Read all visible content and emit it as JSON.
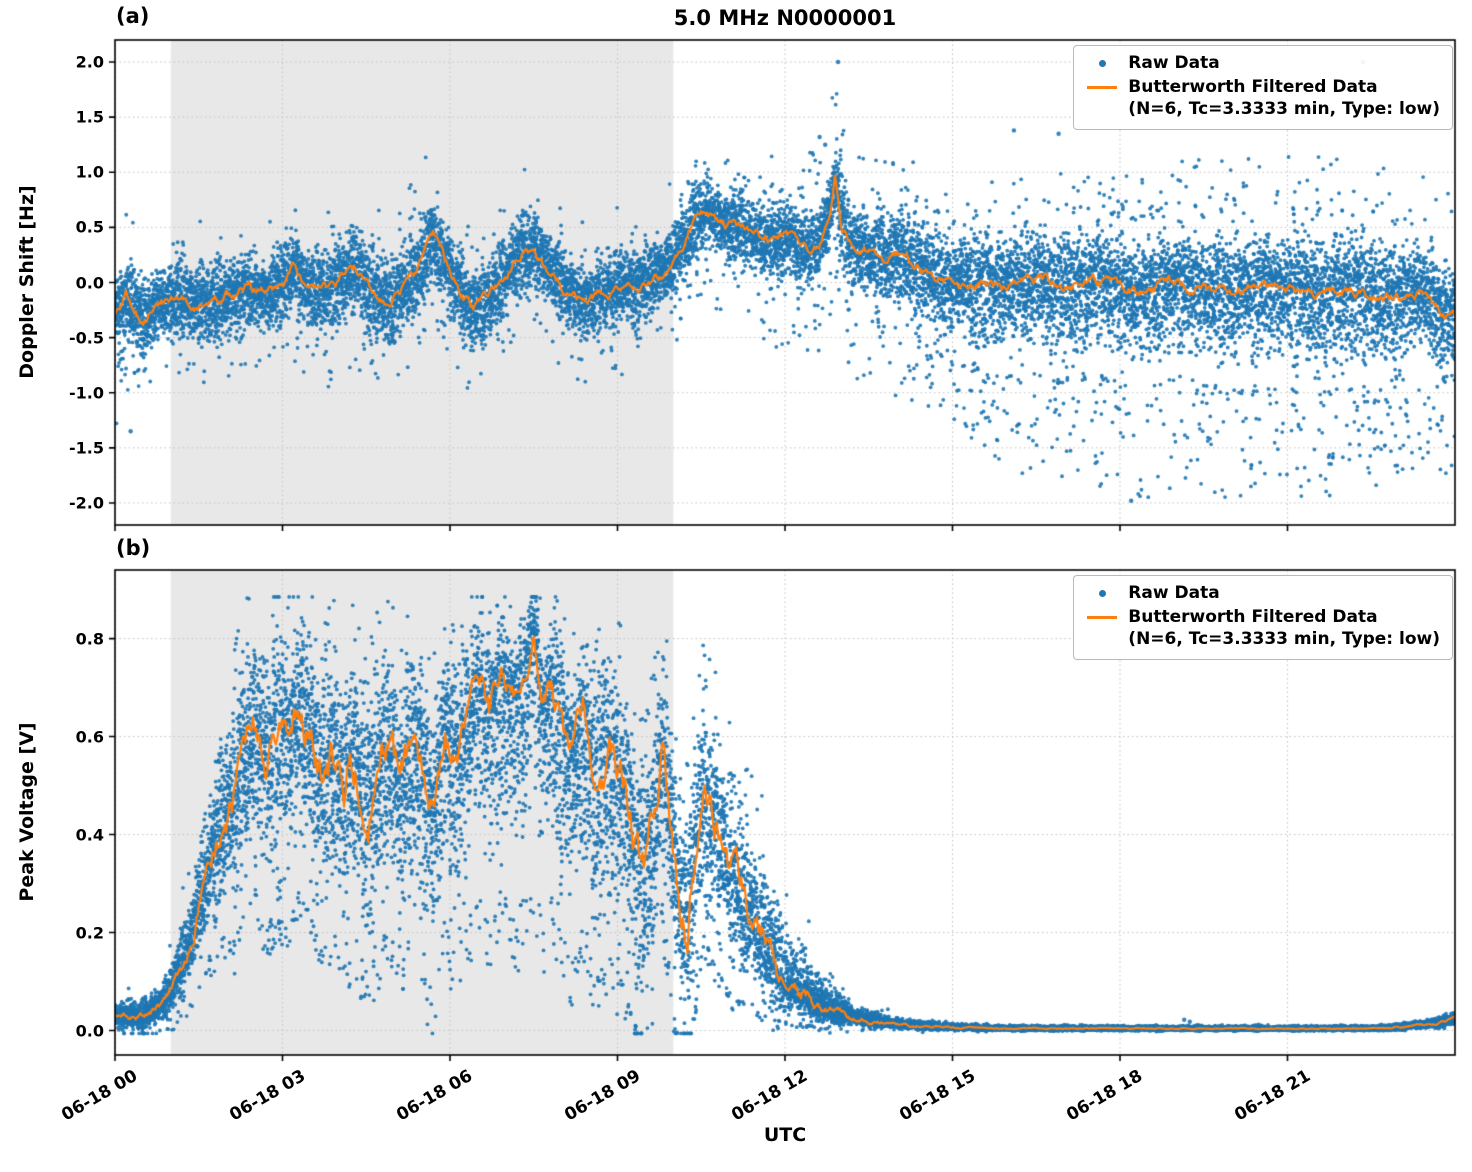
{
  "figure": {
    "title": "5.0 MHz N0000001",
    "xlabel": "UTC",
    "panel_a_label": "(a)",
    "panel_b_label": "(b)",
    "colors": {
      "raw": "#1f77b4",
      "filtered": "#ff7f0e",
      "shade": "#e8e8e8",
      "grid": "#c3c3c3",
      "spine": "#000000"
    },
    "legend": {
      "raw_label": "Raw Data",
      "filtered_label": "Butterworth Filtered Data",
      "filtered_sublabel": "(N=6, Tc=3.3333 min, Type: low)"
    }
  },
  "chart_data": [
    {
      "id": "a",
      "type": "scatter",
      "title": "5.0 MHz N0000001",
      "ylabel": "Doppler Shift [Hz]",
      "xlabel": "",
      "ylim": [
        -2.2,
        2.2
      ],
      "yticks": [
        -2.0,
        -1.5,
        -1.0,
        -0.5,
        0.0,
        0.5,
        1.0,
        1.5,
        2.0
      ],
      "ytick_labels": [
        "-2.0",
        "-1.5",
        "-1.0",
        "-0.5",
        "0.0",
        "0.5",
        "1.0",
        "1.5",
        "2.0"
      ],
      "xlim": [
        0,
        24
      ],
      "xticks": [
        0,
        3,
        6,
        9,
        12,
        15,
        18,
        21
      ],
      "xtick_labels": [
        "06-18 00",
        "06-18 03",
        "06-18 06",
        "06-18 09",
        "06-18 12",
        "06-18 15",
        "06-18 18",
        "06-18 21"
      ],
      "grid": true,
      "legend": [
        "Raw Data",
        "Butterworth Filtered Data (N=6, Tc=3.3333 min, Type: low)"
      ],
      "legend_position": "upper right",
      "shaded_region": [
        1.0,
        10.0
      ],
      "seed": 11,
      "n_points": 15000,
      "line_noise": 0.055,
      "outlier_down_bias": 0.72,
      "filtered": [
        [
          0,
          -0.3
        ],
        [
          0.2,
          -0.12
        ],
        [
          0.5,
          -0.35
        ],
        [
          0.8,
          -0.18
        ],
        [
          1.2,
          -0.14
        ],
        [
          1.6,
          -0.22
        ],
        [
          2.0,
          -0.12
        ],
        [
          2.4,
          -0.05
        ],
        [
          2.7,
          -0.12
        ],
        [
          3.0,
          -0.02
        ],
        [
          3.2,
          0.15
        ],
        [
          3.4,
          0.0
        ],
        [
          3.7,
          -0.1
        ],
        [
          4.0,
          0.02
        ],
        [
          4.3,
          0.12
        ],
        [
          4.6,
          -0.08
        ],
        [
          4.9,
          -0.22
        ],
        [
          5.1,
          -0.05
        ],
        [
          5.4,
          0.08
        ],
        [
          5.7,
          0.42
        ],
        [
          5.85,
          0.25
        ],
        [
          6.1,
          0.0
        ],
        [
          6.4,
          -0.25
        ],
        [
          6.7,
          -0.15
        ],
        [
          7.0,
          0.08
        ],
        [
          7.3,
          0.28
        ],
        [
          7.5,
          0.3
        ],
        [
          7.8,
          0.12
        ],
        [
          8.1,
          -0.08
        ],
        [
          8.4,
          -0.18
        ],
        [
          8.7,
          -0.1
        ],
        [
          9.0,
          -0.05
        ],
        [
          9.4,
          0.0
        ],
        [
          9.8,
          0.08
        ],
        [
          10.1,
          0.3
        ],
        [
          10.4,
          0.55
        ],
        [
          10.6,
          0.65
        ],
        [
          10.9,
          0.52
        ],
        [
          11.2,
          0.48
        ],
        [
          11.5,
          0.42
        ],
        [
          11.8,
          0.35
        ],
        [
          12.1,
          0.42
        ],
        [
          12.4,
          0.28
        ],
        [
          12.6,
          0.35
        ],
        [
          12.8,
          0.6
        ],
        [
          12.9,
          1.0
        ],
        [
          13.0,
          0.55
        ],
        [
          13.2,
          0.32
        ],
        [
          13.5,
          0.28
        ],
        [
          13.8,
          0.22
        ],
        [
          14.1,
          0.28
        ],
        [
          14.4,
          0.15
        ],
        [
          14.7,
          0.05
        ],
        [
          15.0,
          -0.02
        ],
        [
          15.5,
          0.02
        ],
        [
          16.0,
          -0.05
        ],
        [
          16.5,
          0.02
        ],
        [
          17.0,
          -0.04
        ],
        [
          17.5,
          0.03
        ],
        [
          18.0,
          -0.06
        ],
        [
          18.5,
          -0.1
        ],
        [
          19.0,
          0.0
        ],
        [
          19.5,
          -0.06
        ],
        [
          20.0,
          -0.1
        ],
        [
          20.5,
          -0.02
        ],
        [
          21.0,
          -0.06
        ],
        [
          21.5,
          -0.12
        ],
        [
          22.0,
          -0.05
        ],
        [
          22.5,
          -0.12
        ],
        [
          23.0,
          -0.15
        ],
        [
          23.4,
          -0.1
        ],
        [
          23.7,
          -0.22
        ],
        [
          24,
          -0.32
        ]
      ],
      "band": [
        [
          0,
          0.5,
          0.6,
          0.02,
          0.9,
          1.1
        ],
        [
          1,
          0.5,
          0.55,
          0.02,
          0.8,
          0.9
        ],
        [
          3,
          0.5,
          0.55,
          0.02,
          0.8,
          0.9
        ],
        [
          5.5,
          0.55,
          0.6,
          0.03,
          0.9,
          0.9
        ],
        [
          6.5,
          0.5,
          0.55,
          0.02,
          0.8,
          0.8
        ],
        [
          9.5,
          0.45,
          0.5,
          0.02,
          0.8,
          0.8
        ],
        [
          10.2,
          0.45,
          0.45,
          0.03,
          0.7,
          0.8
        ],
        [
          11,
          0.45,
          0.45,
          0.04,
          0.7,
          0.9
        ],
        [
          12.5,
          0.5,
          0.5,
          0.05,
          0.9,
          1.0
        ],
        [
          13.2,
          0.55,
          0.6,
          0.06,
          1.0,
          1.2
        ],
        [
          14,
          0.55,
          0.6,
          0.06,
          0.9,
          1.3
        ],
        [
          15,
          0.6,
          0.7,
          0.07,
          0.9,
          1.5
        ],
        [
          16,
          0.65,
          0.8,
          0.08,
          1.0,
          1.7
        ],
        [
          18,
          0.65,
          0.85,
          0.09,
          1.1,
          1.9
        ],
        [
          20,
          0.65,
          0.85,
          0.09,
          1.2,
          1.9
        ],
        [
          22,
          0.7,
          0.9,
          0.09,
          1.3,
          1.9
        ],
        [
          23,
          0.65,
          0.85,
          0.08,
          1.2,
          1.7
        ],
        [
          24,
          0.6,
          0.8,
          0.07,
          1.1,
          1.5
        ]
      ],
      "extra_points": [
        [
          12.95,
          2.0
        ],
        [
          22.35,
          2.0
        ],
        [
          18.2,
          -1.98
        ],
        [
          16.1,
          1.38
        ],
        [
          16.9,
          1.35
        ],
        [
          0.28,
          -1.35
        ],
        [
          12.62,
          1.32
        ],
        [
          12.72,
          1.25
        ]
      ]
    },
    {
      "id": "b",
      "type": "scatter",
      "title": "",
      "ylabel": "Peak Voltage [V]",
      "xlabel": "UTC",
      "ylim": [
        -0.05,
        0.94
      ],
      "yticks": [
        0.0,
        0.2,
        0.4,
        0.6,
        0.8
      ],
      "ytick_labels": [
        "0.0",
        "0.2",
        "0.4",
        "0.6",
        "0.8"
      ],
      "xlim": [
        0,
        24
      ],
      "xticks": [
        0,
        3,
        6,
        9,
        12,
        15,
        18,
        21
      ],
      "xtick_labels": [
        "06-18 00",
        "06-18 03",
        "06-18 06",
        "06-18 09",
        "06-18 12",
        "06-18 15",
        "06-18 18",
        "06-18 21"
      ],
      "grid": true,
      "legend": [
        "Raw Data",
        "Butterworth Filtered Data (N=6, Tc=3.3333 min, Type: low)"
      ],
      "legend_position": "upper right",
      "shaded_region": [
        1.0,
        10.0
      ],
      "seed": 23,
      "n_points": 16000,
      "line_noise": 0.05,
      "outlier_down_bias": 0.85,
      "clip": [
        -0.006,
        0.885
      ],
      "clip_line": [
        0.0,
        0.83
      ],
      "filtered": [
        [
          0,
          0.03
        ],
        [
          0.5,
          0.03
        ],
        [
          0.8,
          0.05
        ],
        [
          1.0,
          0.08
        ],
        [
          1.3,
          0.16
        ],
        [
          1.6,
          0.3
        ],
        [
          1.9,
          0.42
        ],
        [
          2.2,
          0.5
        ],
        [
          2.5,
          0.63
        ],
        [
          2.7,
          0.55
        ],
        [
          2.9,
          0.63
        ],
        [
          3.1,
          0.58
        ],
        [
          3.3,
          0.66
        ],
        [
          3.5,
          0.6
        ],
        [
          3.7,
          0.52
        ],
        [
          3.9,
          0.56
        ],
        [
          4.1,
          0.48
        ],
        [
          4.3,
          0.55
        ],
        [
          4.5,
          0.44
        ],
        [
          4.7,
          0.52
        ],
        [
          4.9,
          0.56
        ],
        [
          5.1,
          0.48
        ],
        [
          5.3,
          0.58
        ],
        [
          5.5,
          0.52
        ],
        [
          5.7,
          0.46
        ],
        [
          5.9,
          0.62
        ],
        [
          6.1,
          0.55
        ],
        [
          6.3,
          0.62
        ],
        [
          6.5,
          0.7
        ],
        [
          6.7,
          0.63
        ],
        [
          6.9,
          0.72
        ],
        [
          7.1,
          0.66
        ],
        [
          7.3,
          0.7
        ],
        [
          7.5,
          0.82
        ],
        [
          7.65,
          0.64
        ],
        [
          7.8,
          0.7
        ],
        [
          8.0,
          0.6
        ],
        [
          8.2,
          0.54
        ],
        [
          8.4,
          0.64
        ],
        [
          8.6,
          0.5
        ],
        [
          8.8,
          0.56
        ],
        [
          9.0,
          0.52
        ],
        [
          9.2,
          0.44
        ],
        [
          9.35,
          0.35
        ],
        [
          9.5,
          0.3
        ],
        [
          9.65,
          0.42
        ],
        [
          9.8,
          0.56
        ],
        [
          9.95,
          0.42
        ],
        [
          10.1,
          0.28
        ],
        [
          10.25,
          0.22
        ],
        [
          10.4,
          0.38
        ],
        [
          10.55,
          0.48
        ],
        [
          10.7,
          0.42
        ],
        [
          10.9,
          0.36
        ],
        [
          11.1,
          0.3
        ],
        [
          11.3,
          0.26
        ],
        [
          11.5,
          0.2
        ],
        [
          11.8,
          0.13
        ],
        [
          12.0,
          0.1
        ],
        [
          12.3,
          0.08
        ],
        [
          12.6,
          0.05
        ],
        [
          13.0,
          0.035
        ],
        [
          13.5,
          0.02
        ],
        [
          14.0,
          0.012
        ],
        [
          14.5,
          0.008
        ],
        [
          15.0,
          0.006
        ],
        [
          16.0,
          0.004
        ],
        [
          17.0,
          0.004
        ],
        [
          18.0,
          0.004
        ],
        [
          19.0,
          0.004
        ],
        [
          20.0,
          0.004
        ],
        [
          21.0,
          0.004
        ],
        [
          22.0,
          0.004
        ],
        [
          22.8,
          0.005
        ],
        [
          23.3,
          0.01
        ],
        [
          23.7,
          0.015
        ],
        [
          24,
          0.025
        ]
      ],
      "band": [
        [
          0,
          0.04,
          0.03,
          0.01,
          0.06,
          0.04
        ],
        [
          0.8,
          0.05,
          0.05,
          0.02,
          0.08,
          0.06
        ],
        [
          1.2,
          0.1,
          0.1,
          0.03,
          0.15,
          0.12
        ],
        [
          1.6,
          0.18,
          0.15,
          0.04,
          0.25,
          0.2
        ],
        [
          2.2,
          0.3,
          0.3,
          0.05,
          0.35,
          0.4
        ],
        [
          3,
          0.28,
          0.38,
          0.06,
          0.33,
          0.45
        ],
        [
          4,
          0.3,
          0.35,
          0.06,
          0.35,
          0.42
        ],
        [
          5,
          0.3,
          0.35,
          0.06,
          0.35,
          0.45
        ],
        [
          6,
          0.25,
          0.4,
          0.06,
          0.3,
          0.5
        ],
        [
          7,
          0.2,
          0.42,
          0.06,
          0.25,
          0.55
        ],
        [
          7.5,
          0.15,
          0.45,
          0.06,
          0.2,
          0.6
        ],
        [
          8,
          0.25,
          0.4,
          0.06,
          0.3,
          0.5
        ],
        [
          9,
          0.3,
          0.4,
          0.06,
          0.33,
          0.5
        ],
        [
          9.7,
          0.3,
          0.3,
          0.06,
          0.35,
          0.4
        ],
        [
          10.4,
          0.3,
          0.3,
          0.06,
          0.35,
          0.35
        ],
        [
          11,
          0.3,
          0.25,
          0.06,
          0.35,
          0.3
        ],
        [
          11.5,
          0.25,
          0.15,
          0.05,
          0.3,
          0.18
        ],
        [
          12,
          0.15,
          0.08,
          0.04,
          0.3,
          0.1
        ],
        [
          12.5,
          0.1,
          0.05,
          0.03,
          0.2,
          0.06
        ],
        [
          13,
          0.05,
          0.03,
          0.02,
          0.1,
          0.04
        ],
        [
          13.5,
          0.03,
          0.015,
          0.01,
          0.05,
          0.02
        ],
        [
          14,
          0.02,
          0.01,
          0.005,
          0.03,
          0.015
        ],
        [
          15,
          0.012,
          0.008,
          0,
          0.02,
          0.01
        ],
        [
          16,
          0.008,
          0.006,
          0,
          0.012,
          0.008
        ],
        [
          20,
          0.008,
          0.006,
          0,
          0.012,
          0.008
        ],
        [
          22.5,
          0.008,
          0.006,
          0,
          0.012,
          0.008
        ],
        [
          23.3,
          0.012,
          0.01,
          0,
          0.02,
          0.012
        ],
        [
          24,
          0.02,
          0.015,
          0,
          0.03,
          0.02
        ]
      ],
      "extra_points": [
        [
          19.15,
          0.022
        ],
        [
          19.25,
          0.018
        ]
      ]
    }
  ]
}
